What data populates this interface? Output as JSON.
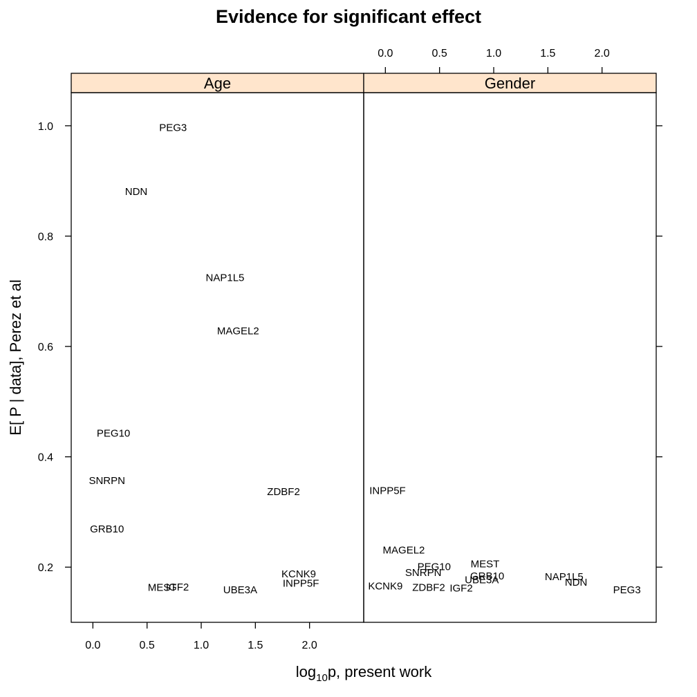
{
  "chart_data": {
    "type": "scatter",
    "title": "Evidence for significant effect",
    "xlabel": "log10p,  present work",
    "xlabel_parts": {
      "prefix": "log",
      "subscript": "10",
      "suffix": "p,  present work"
    },
    "ylabel": "E[ P | data],  Perez et al",
    "xlim": [
      -0.2,
      2.5
    ],
    "ylim": [
      0.1,
      1.06
    ],
    "x_ticks": [
      0.0,
      0.5,
      1.0,
      1.5,
      2.0
    ],
    "x_tick_labels": [
      "0.0",
      "0.5",
      "1.0",
      "1.5",
      "2.0"
    ],
    "y_ticks": [
      0.2,
      0.4,
      0.6,
      0.8,
      1.0
    ],
    "y_tick_labels": [
      "0.2",
      "0.4",
      "0.6",
      "0.8",
      "1.0"
    ],
    "marker": "text labels",
    "strip_color": "#ffe5cc",
    "panels": [
      {
        "name": "Age",
        "points": [
          {
            "label": "PEG3",
            "x": 0.74,
            "y": 0.997
          },
          {
            "label": "NDN",
            "x": 0.4,
            "y": 0.881
          },
          {
            "label": "NAP1L5",
            "x": 1.22,
            "y": 0.725
          },
          {
            "label": "MAGEL2",
            "x": 1.34,
            "y": 0.628
          },
          {
            "label": "PEG10",
            "x": 0.19,
            "y": 0.443
          },
          {
            "label": "SNRPN",
            "x": 0.13,
            "y": 0.357
          },
          {
            "label": "ZDBF2",
            "x": 1.76,
            "y": 0.337
          },
          {
            "label": "GRB10",
            "x": 0.13,
            "y": 0.269
          },
          {
            "label": "KCNK9",
            "x": 1.9,
            "y": 0.188
          },
          {
            "label": "INPP5F",
            "x": 1.92,
            "y": 0.171
          },
          {
            "label": "MEST",
            "x": 0.64,
            "y": 0.163
          },
          {
            "label": "IGF2",
            "x": 0.78,
            "y": 0.164
          },
          {
            "label": "UBE3A",
            "x": 1.36,
            "y": 0.159
          }
        ]
      },
      {
        "name": "Gender",
        "points": [
          {
            "label": "INPP5F",
            "x": 0.02,
            "y": 0.339
          },
          {
            "label": "MAGEL2",
            "x": 0.17,
            "y": 0.231
          },
          {
            "label": "MEST",
            "x": 0.92,
            "y": 0.206
          },
          {
            "label": "PEG10",
            "x": 0.45,
            "y": 0.201
          },
          {
            "label": "SNRPN",
            "x": 0.35,
            "y": 0.19
          },
          {
            "label": "GRB10",
            "x": 0.94,
            "y": 0.184
          },
          {
            "label": "NAP1L5",
            "x": 1.65,
            "y": 0.183
          },
          {
            "label": "UBE3A",
            "x": 0.89,
            "y": 0.177
          },
          {
            "label": "NDN",
            "x": 1.76,
            "y": 0.173
          },
          {
            "label": "KCNK9",
            "x": 0.0,
            "y": 0.166
          },
          {
            "label": "ZDBF2",
            "x": 0.4,
            "y": 0.163
          },
          {
            "label": "IGF2",
            "x": 0.7,
            "y": 0.162
          },
          {
            "label": "PEG3",
            "x": 2.23,
            "y": 0.159
          }
        ]
      }
    ]
  }
}
